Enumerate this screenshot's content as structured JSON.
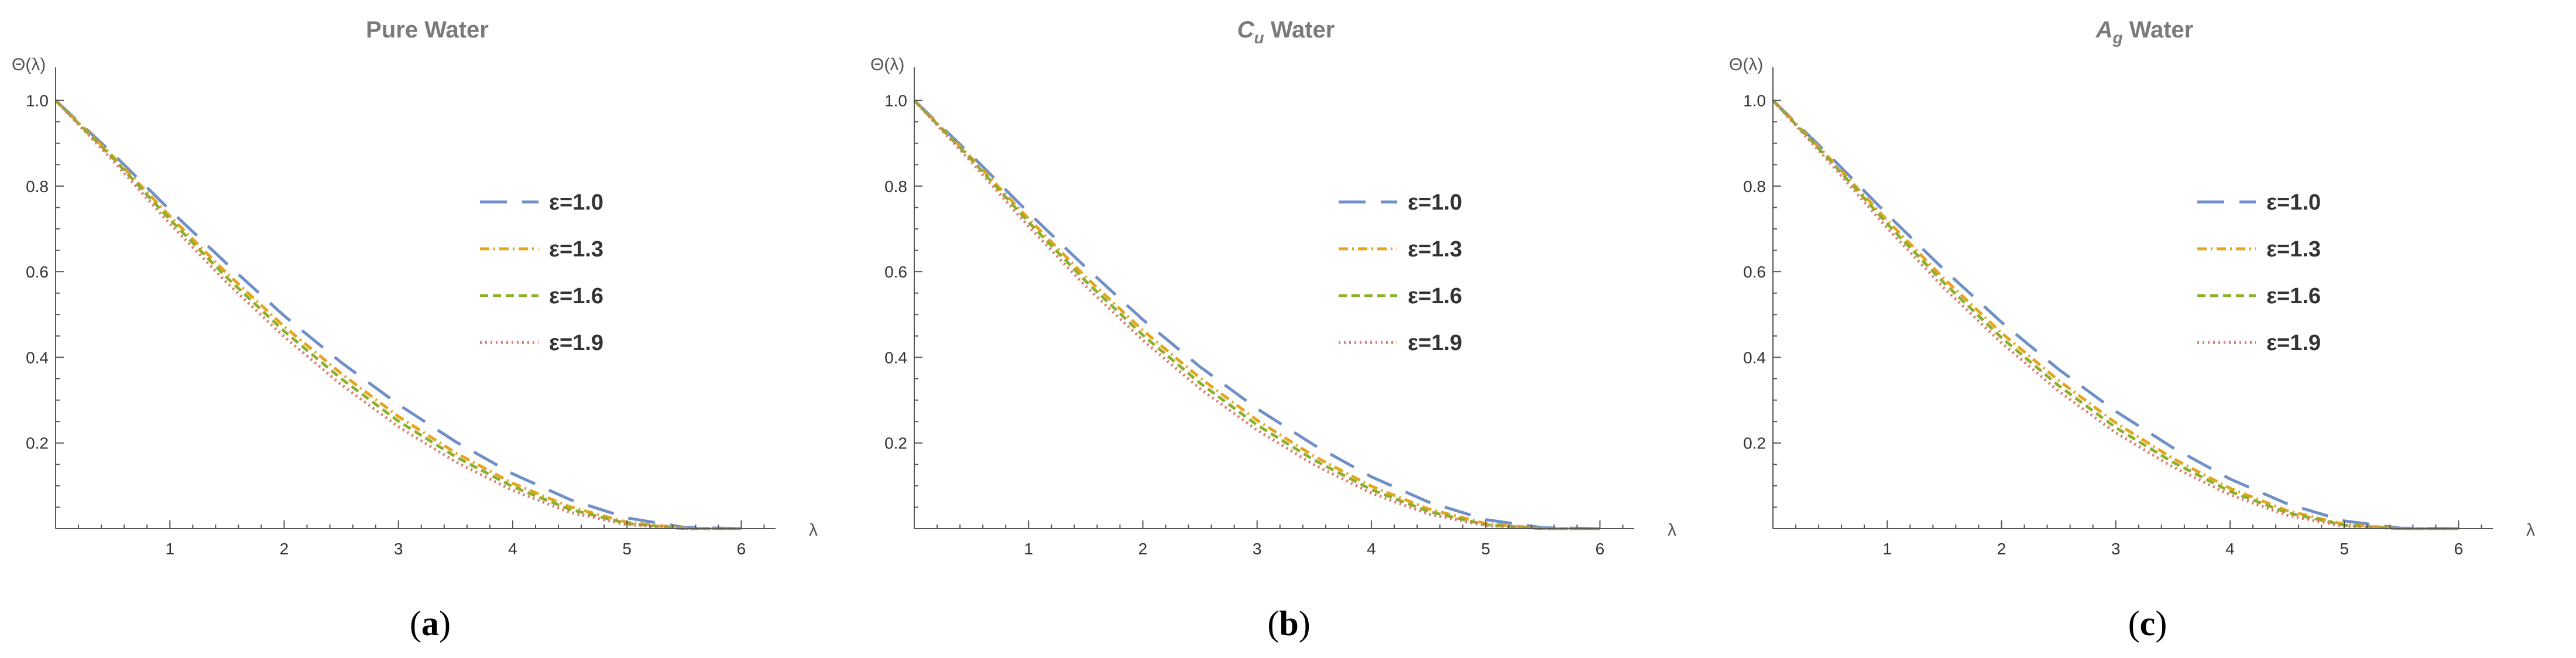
{
  "chart_data": [
    {
      "type": "line",
      "panel": "a",
      "title_main": "Pure Water",
      "title_sub": "",
      "title_suffix": "",
      "ylabel": "Θ(λ)",
      "xlabel": "λ",
      "xlim": [
        0,
        6.3
      ],
      "ylim": [
        0,
        1.05
      ],
      "xticks": [
        1,
        2,
        3,
        4,
        5,
        6
      ],
      "yticks": [
        0.2,
        0.4,
        0.6,
        0.8,
        1.0
      ],
      "ytick_labels": [
        "0.2",
        "0.4",
        "0.6",
        "0.8",
        "1.0"
      ],
      "legend_position": "center-right",
      "caption_letter": "a",
      "x": [
        0,
        0.5,
        1,
        1.5,
        2,
        2.5,
        3,
        3.5,
        4,
        4.5,
        5,
        5.5,
        6
      ],
      "series": [
        {
          "name": "ε=1.0",
          "color": "#6f8fc7",
          "dash": "46 26",
          "values": [
            1.0,
            0.876,
            0.744,
            0.618,
            0.497,
            0.388,
            0.29,
            0.203,
            0.128,
            0.068,
            0.025,
            0.003,
            0.0
          ]
        },
        {
          "name": "ε=1.3",
          "color": "#e5a41a",
          "dash": "16 7 3 7",
          "values": [
            1.0,
            0.87,
            0.73,
            0.596,
            0.472,
            0.362,
            0.262,
            0.177,
            0.106,
            0.051,
            0.015,
            0.001,
            0.0
          ]
        },
        {
          "name": "ε=1.6",
          "color": "#8bb02c",
          "dash": "14 8",
          "values": [
            1.0,
            0.866,
            0.722,
            0.586,
            0.461,
            0.35,
            0.251,
            0.168,
            0.098,
            0.045,
            0.012,
            0.0,
            0.0
          ]
        },
        {
          "name": "ε=1.9",
          "color": "#e0776a",
          "dash": "3 6",
          "values": [
            1.0,
            0.86,
            0.712,
            0.574,
            0.448,
            0.336,
            0.238,
            0.156,
            0.089,
            0.038,
            0.009,
            0.0,
            0.0
          ]
        }
      ]
    },
    {
      "type": "line",
      "panel": "b",
      "title_main": "C",
      "title_sub": "u",
      "title_suffix": " Water",
      "ylabel": "Θ(λ)",
      "xlabel": "λ",
      "xlim": [
        0,
        6.3
      ],
      "ylim": [
        0,
        1.05
      ],
      "xticks": [
        1,
        2,
        3,
        4,
        5,
        6
      ],
      "yticks": [
        0.2,
        0.4,
        0.6,
        0.8,
        1.0
      ],
      "ytick_labels": [
        "0.2",
        "0.4",
        "0.6",
        "0.8",
        "1.0"
      ],
      "legend_position": "center-right",
      "caption_letter": "b",
      "x": [
        0,
        0.5,
        1,
        1.5,
        2,
        2.5,
        3,
        3.5,
        4,
        4.5,
        5,
        5.5,
        6
      ],
      "series": [
        {
          "name": "ε=1.0",
          "color": "#6f8fc7",
          "dash": "46 26",
          "values": [
            1.0,
            0.872,
            0.738,
            0.61,
            0.488,
            0.378,
            0.28,
            0.195,
            0.121,
            0.062,
            0.021,
            0.002,
            0.0
          ]
        },
        {
          "name": "ε=1.3",
          "color": "#e5a41a",
          "dash": "16 7 3 7",
          "values": [
            1.0,
            0.866,
            0.724,
            0.588,
            0.463,
            0.352,
            0.253,
            0.169,
            0.099,
            0.046,
            0.012,
            0.0,
            0.0
          ]
        },
        {
          "name": "ε=1.6",
          "color": "#8bb02c",
          "dash": "14 8",
          "values": [
            1.0,
            0.862,
            0.716,
            0.578,
            0.452,
            0.34,
            0.242,
            0.16,
            0.091,
            0.04,
            0.009,
            0.0,
            0.0
          ]
        },
        {
          "name": "ε=1.9",
          "color": "#e0776a",
          "dash": "3 6",
          "values": [
            1.0,
            0.856,
            0.706,
            0.566,
            0.44,
            0.327,
            0.23,
            0.149,
            0.083,
            0.034,
            0.007,
            0.0,
            0.0
          ]
        }
      ]
    },
    {
      "type": "line",
      "panel": "c",
      "title_main": "A",
      "title_sub": "g",
      "title_suffix": " Water",
      "ylabel": "Θ(λ)",
      "xlabel": "λ",
      "xlim": [
        0,
        6.3
      ],
      "ylim": [
        0,
        1.05
      ],
      "xticks": [
        1,
        2,
        3,
        4,
        5,
        6
      ],
      "yticks": [
        0.2,
        0.4,
        0.6,
        0.8,
        1.0
      ],
      "ytick_labels": [
        "0.2",
        "0.4",
        "0.6",
        "0.8",
        "1.0"
      ],
      "legend_position": "center-right",
      "caption_letter": "c",
      "x": [
        0,
        0.5,
        1,
        1.5,
        2,
        2.5,
        3,
        3.5,
        4,
        4.5,
        5,
        5.5,
        6
      ],
      "series": [
        {
          "name": "ε=1.0",
          "color": "#6f8fc7",
          "dash": "46 26",
          "values": [
            1.0,
            0.87,
            0.734,
            0.604,
            0.482,
            0.372,
            0.274,
            0.189,
            0.116,
            0.058,
            0.018,
            0.001,
            0.0
          ]
        },
        {
          "name": "ε=1.3",
          "color": "#e5a41a",
          "dash": "16 7 3 7",
          "values": [
            1.0,
            0.864,
            0.72,
            0.583,
            0.457,
            0.346,
            0.247,
            0.164,
            0.094,
            0.042,
            0.01,
            0.0,
            0.0
          ]
        },
        {
          "name": "ε=1.6",
          "color": "#8bb02c",
          "dash": "14 8",
          "values": [
            1.0,
            0.86,
            0.712,
            0.573,
            0.446,
            0.334,
            0.236,
            0.155,
            0.087,
            0.037,
            0.008,
            0.0,
            0.0
          ]
        },
        {
          "name": "ε=1.9",
          "color": "#e0776a",
          "dash": "3 6",
          "values": [
            1.0,
            0.854,
            0.702,
            0.561,
            0.434,
            0.321,
            0.224,
            0.144,
            0.079,
            0.031,
            0.005,
            0.0,
            0.0
          ]
        }
      ]
    }
  ]
}
